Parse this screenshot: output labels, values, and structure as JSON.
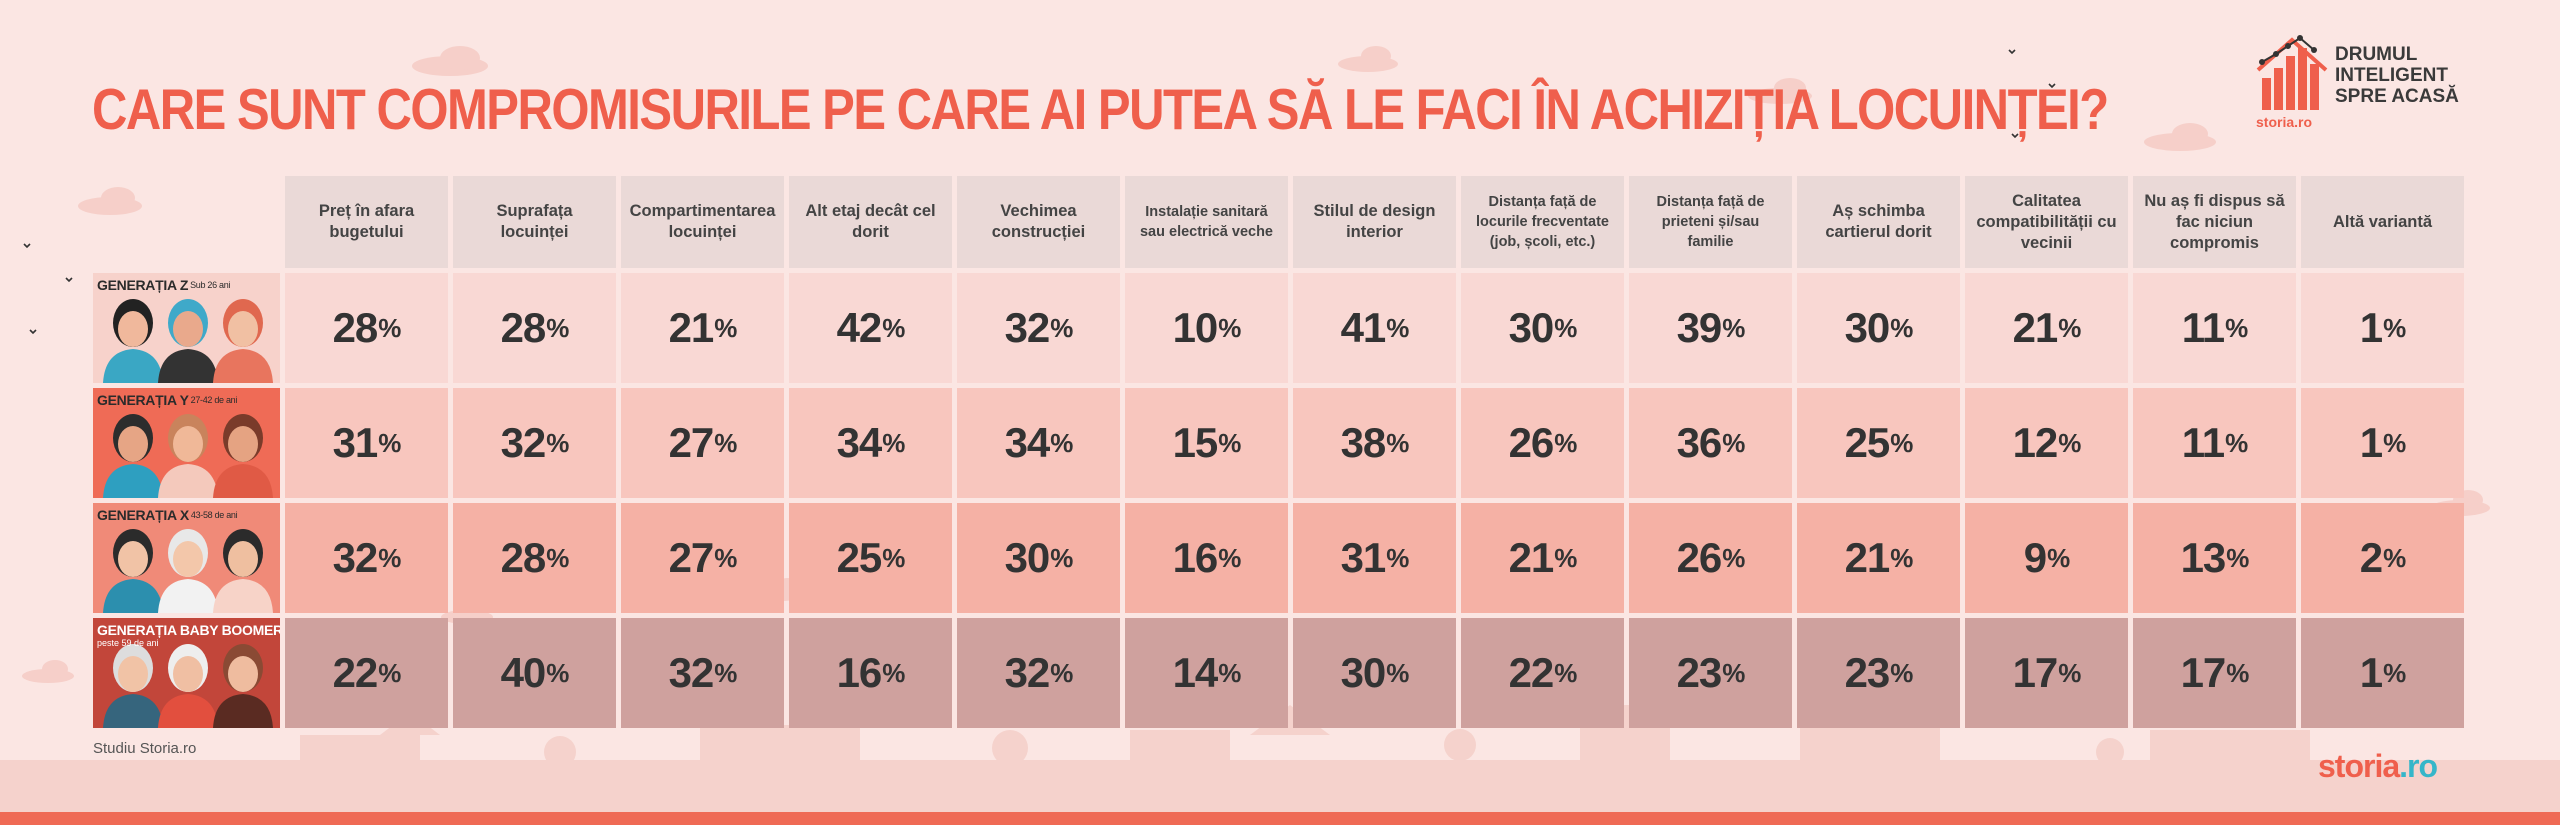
{
  "title": "Care sunt compromisurile pe care ai putea să le faci în achiziția locuinței?",
  "brand": {
    "lines": [
      "Drumul",
      "Inteligent",
      "spre acasă"
    ],
    "sub": "storia.ro"
  },
  "source_note": "Studiu Storia.ro",
  "footer_logo": {
    "main": "storia",
    "suffix": ".ro"
  },
  "colors": {
    "title": "#ef5f4c",
    "background": "#fbe6e3",
    "header_cell": "#ead9d7",
    "row_gen_z": "#f9d8d4",
    "row_gen_y": "#f8c6be",
    "row_gen_x": "#f5b1a5",
    "row_boomers": "#cfa19e",
    "accent_teal": "#35b6c9"
  },
  "chart_data": {
    "type": "table",
    "columns": [
      "Preț în afara bugetului",
      "Suprafața locuinței",
      "Compartimentarea locuinței",
      "Alt etaj decât cel dorit",
      "Vechimea construcției",
      "Instalație sanitară sau electrică veche",
      "Stilul de design interior",
      "Distanța față de locurile frecventate (job, școli, etc.)",
      "Distanța față de prieteni și/sau familie",
      "Aș schimba cartierul dorit",
      "Calitatea compatibilității cu vecinii",
      "Nu aș fi dispus să fac niciun compromis",
      "Altă variantă"
    ],
    "rows": [
      {
        "name": "Generația Z",
        "age": "Sub 26 ani",
        "values": [
          28,
          28,
          21,
          42,
          32,
          10,
          41,
          30,
          39,
          30,
          21,
          11,
          1
        ]
      },
      {
        "name": "Generația Y",
        "age": "27-42 de ani",
        "values": [
          31,
          32,
          27,
          34,
          34,
          15,
          38,
          26,
          36,
          25,
          12,
          11,
          1
        ]
      },
      {
        "name": "Generația X",
        "age": "43-58 de ani",
        "values": [
          32,
          28,
          27,
          25,
          30,
          16,
          31,
          21,
          26,
          21,
          9,
          13,
          2
        ]
      },
      {
        "name": "Generația Baby Boomers",
        "age": "peste 59 de ani",
        "values": [
          22,
          40,
          32,
          16,
          32,
          14,
          30,
          22,
          23,
          23,
          17,
          17,
          1
        ]
      }
    ],
    "unit": "%"
  }
}
